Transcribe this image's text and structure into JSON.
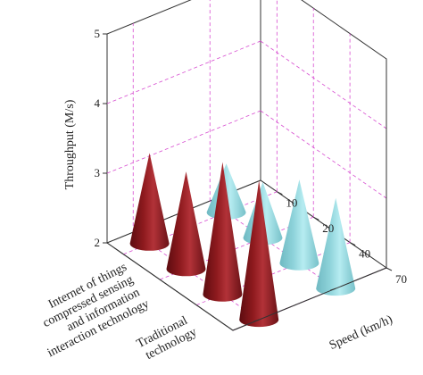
{
  "chart_data": {
    "type": "bar",
    "bar_shape": "cone",
    "projection": "3d",
    "title": "",
    "ylabel": "Throughput (M/s)",
    "xlabel": "Speed (km/h)",
    "zlim": [
      2,
      5
    ],
    "z_ticks": [
      "2",
      "3",
      "4",
      "5"
    ],
    "categories": [
      "10",
      "20",
      "40",
      "70"
    ],
    "grid": true,
    "series": [
      {
        "name": "Internet of things compressed sensing and information interaction technology",
        "label_lines": [
          "Internet of things",
          "compressed sensing",
          "and information",
          "interaction technology"
        ],
        "color": "#8e1a1e",
        "values": [
          3.3,
          3.4,
          3.9,
          4.0
        ]
      },
      {
        "name": "Traditional technology",
        "label_lines": [
          "Traditional",
          "technology"
        ],
        "color": "#8ed3da",
        "values": [
          2.7,
          2.8,
          3.2,
          3.3
        ]
      }
    ]
  }
}
